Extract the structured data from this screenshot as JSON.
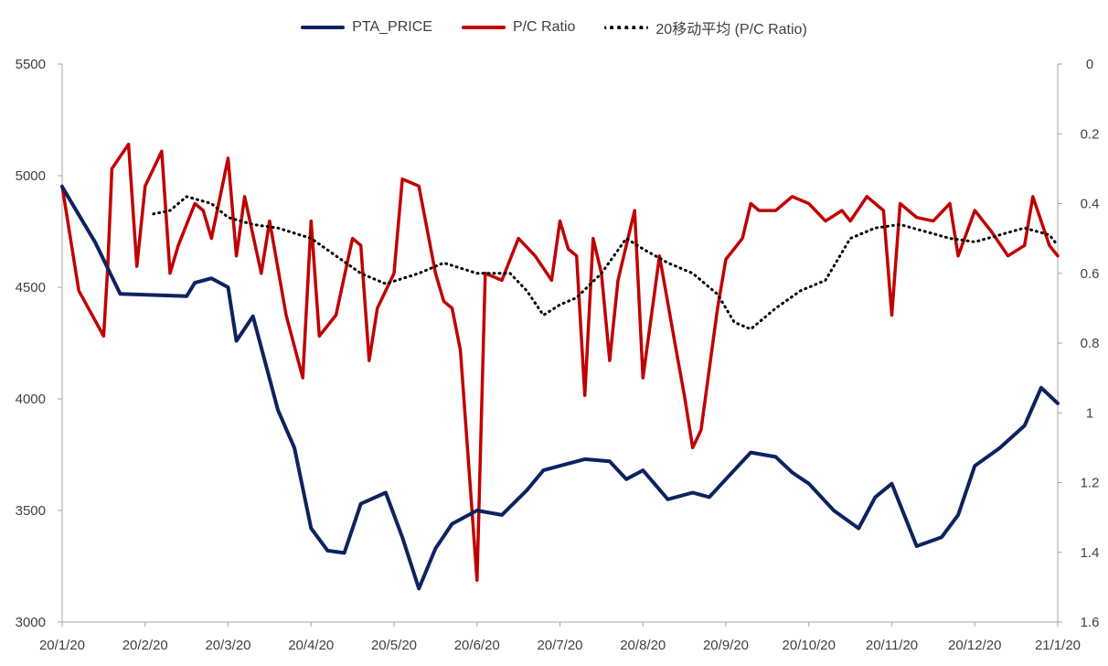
{
  "chart_data": {
    "type": "line",
    "title": "",
    "legend": [
      "PTA_PRICE",
      "P/C Ratio",
      "20移动平均 (P/C Ratio)"
    ],
    "legend_position": "top-center",
    "x_tick_labels": [
      "20/1/20",
      "20/2/20",
      "20/3/20",
      "20/4/20",
      "20/5/20",
      "20/6/20",
      "20/7/20",
      "20/8/20",
      "20/9/20",
      "20/10/20",
      "20/11/20",
      "20/12/20",
      "21/1/20"
    ],
    "y_left": {
      "range": [
        3000,
        5500
      ],
      "ticks": [
        "3000",
        "3500",
        "4000",
        "4500",
        "5000",
        "5500"
      ]
    },
    "y_right": {
      "range": [
        0,
        1.6
      ],
      "reversed": true,
      "ticks": [
        "0",
        "0.2",
        "0.4",
        "0.6",
        "0.8",
        "1",
        "1.2",
        "1.4",
        "1.6"
      ]
    },
    "series": [
      {
        "name": "PTA_PRICE",
        "axis": "left",
        "color": "#0d2260",
        "style": "solid",
        "x": [
          0,
          0.4,
          0.7,
          1.5,
          1.6,
          1.8,
          2,
          2.1,
          2.3,
          2.6,
          2.8,
          3,
          3.2,
          3.4,
          3.6,
          3.9,
          4.1,
          4.3,
          4.5,
          4.7,
          5,
          5.3,
          5.6,
          5.8,
          6,
          6.3,
          6.6,
          6.8,
          7,
          7.3,
          7.6,
          7.8,
          8,
          8.3,
          8.6,
          8.8,
          9,
          9.3,
          9.6,
          9.8,
          10,
          10.3,
          10.6,
          10.8,
          11,
          11.3,
          11.6,
          11.8,
          12
        ],
        "values": [
          4950,
          4700,
          4470,
          4460,
          4520,
          4540,
          4500,
          4260,
          4370,
          3950,
          3780,
          3420,
          3320,
          3310,
          3530,
          3580,
          3380,
          3150,
          3330,
          3440,
          3500,
          3480,
          3590,
          3680,
          3700,
          3730,
          3720,
          3640,
          3680,
          3550,
          3580,
          3560,
          3640,
          3760,
          3740,
          3670,
          3620,
          3500,
          3420,
          3560,
          3620,
          3340,
          3380,
          3480,
          3700,
          3780,
          3880,
          4050,
          3980
        ]
      },
      {
        "name": "P/C Ratio",
        "axis": "right",
        "color": "#c00000",
        "style": "solid",
        "x": [
          0,
          0.1,
          0.2,
          0.5,
          0.55,
          0.6,
          0.8,
          0.9,
          1,
          1.2,
          1.3,
          1.4,
          1.6,
          1.7,
          1.8,
          2,
          2.1,
          2.2,
          2.4,
          2.5,
          2.7,
          2.9,
          3,
          3.1,
          3.3,
          3.5,
          3.6,
          3.7,
          3.8,
          4,
          4.1,
          4.3,
          4.5,
          4.6,
          4.7,
          4.8,
          5,
          5.1,
          5.3,
          5.5,
          5.7,
          5.9,
          6,
          6.1,
          6.2,
          6.3,
          6.4,
          6.5,
          6.6,
          6.7,
          6.9,
          7,
          7.2,
          7.4,
          7.5,
          7.6,
          7.7,
          7.9,
          8,
          8.2,
          8.3,
          8.4,
          8.6,
          8.8,
          9,
          9.2,
          9.4,
          9.5,
          9.7,
          9.9,
          10,
          10.1,
          10.3,
          10.5,
          10.7,
          10.8,
          11,
          11.2,
          11.4,
          11.6,
          11.7,
          11.9,
          12
        ],
        "values": [
          0.35,
          0.5,
          0.65,
          0.78,
          0.58,
          0.3,
          0.23,
          0.58,
          0.35,
          0.25,
          0.6,
          0.52,
          0.4,
          0.42,
          0.5,
          0.27,
          0.55,
          0.38,
          0.6,
          0.45,
          0.72,
          0.9,
          0.45,
          0.78,
          0.72,
          0.5,
          0.52,
          0.85,
          0.7,
          0.6,
          0.33,
          0.35,
          0.6,
          0.68,
          0.7,
          0.82,
          1.48,
          0.6,
          0.62,
          0.5,
          0.55,
          0.62,
          0.45,
          0.53,
          0.55,
          0.95,
          0.5,
          0.6,
          0.85,
          0.62,
          0.42,
          0.9,
          0.55,
          0.82,
          0.95,
          1.1,
          1.05,
          0.7,
          0.56,
          0.5,
          0.4,
          0.42,
          0.42,
          0.38,
          0.4,
          0.45,
          0.42,
          0.45,
          0.38,
          0.42,
          0.72,
          0.4,
          0.44,
          0.45,
          0.4,
          0.55,
          0.42,
          0.48,
          0.55,
          0.52,
          0.38,
          0.52,
          0.55
        ]
      },
      {
        "name": "20移动平均 (P/C Ratio)",
        "axis": "right",
        "color": "#000000",
        "style": "dotted",
        "x": [
          1.1,
          1.3,
          1.5,
          1.8,
          2,
          2.3,
          2.6,
          3,
          3.3,
          3.6,
          3.9,
          4.3,
          4.6,
          5,
          5.4,
          5.6,
          5.8,
          6,
          6.2,
          6.5,
          6.8,
          7,
          7.3,
          7.6,
          7.9,
          8.1,
          8.3,
          8.6,
          8.9,
          9.2,
          9.5,
          9.8,
          10.1,
          10.4,
          10.7,
          11,
          11.3,
          11.6,
          11.9,
          12
        ],
        "values": [
          0.43,
          0.42,
          0.38,
          0.4,
          0.44,
          0.46,
          0.47,
          0.5,
          0.55,
          0.6,
          0.63,
          0.6,
          0.57,
          0.6,
          0.6,
          0.65,
          0.72,
          0.69,
          0.67,
          0.6,
          0.5,
          0.53,
          0.57,
          0.6,
          0.66,
          0.74,
          0.76,
          0.7,
          0.65,
          0.62,
          0.5,
          0.47,
          0.46,
          0.48,
          0.5,
          0.51,
          0.49,
          0.47,
          0.49,
          0.52
        ]
      }
    ]
  }
}
